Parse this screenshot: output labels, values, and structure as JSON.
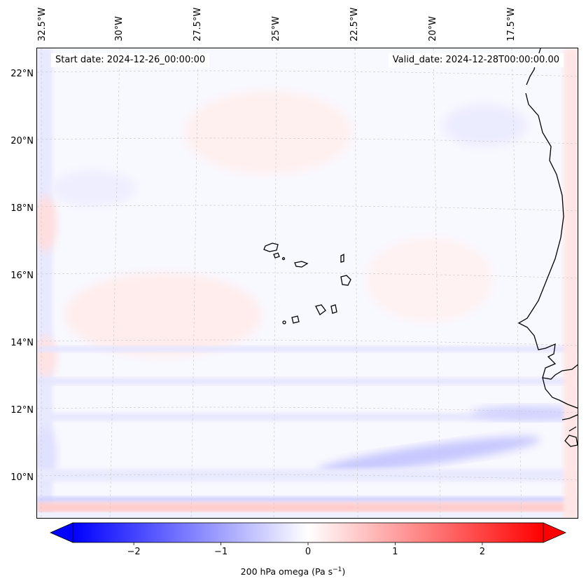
{
  "map": {
    "title_start": "Start date: 2024-12-26_00:00:00",
    "title_valid": "Valid_date: 2024-12-28T00:00:00.00",
    "lon_labels": [
      "32.5°W",
      "30°W",
      "27.5°W",
      "25°W",
      "22.5°W",
      "20°W",
      "17.5°W"
    ],
    "lat_labels": [
      "22°N",
      "20°N",
      "18°N",
      "16°N",
      "14°N",
      "12°N",
      "10°N"
    ],
    "variable": "200 hPa omega",
    "units": "Pa s",
    "units_exponent": "−1"
  },
  "colorbar": {
    "min": -2.7,
    "max": 2.7,
    "ticks": [
      -2,
      -1,
      0,
      1,
      2
    ],
    "tick_labels": [
      "−2",
      "−1",
      "0",
      "1",
      "2"
    ],
    "label": "200 hPa omega (Pa s⁻¹)",
    "colors": {
      "negative": "#0000ff",
      "zero": "#ffffff",
      "positive": "#ff0000"
    },
    "extend": "both"
  },
  "colors": {
    "coast": "#000000",
    "grid": "#cccccc",
    "background": "#f8f8ff"
  }
}
